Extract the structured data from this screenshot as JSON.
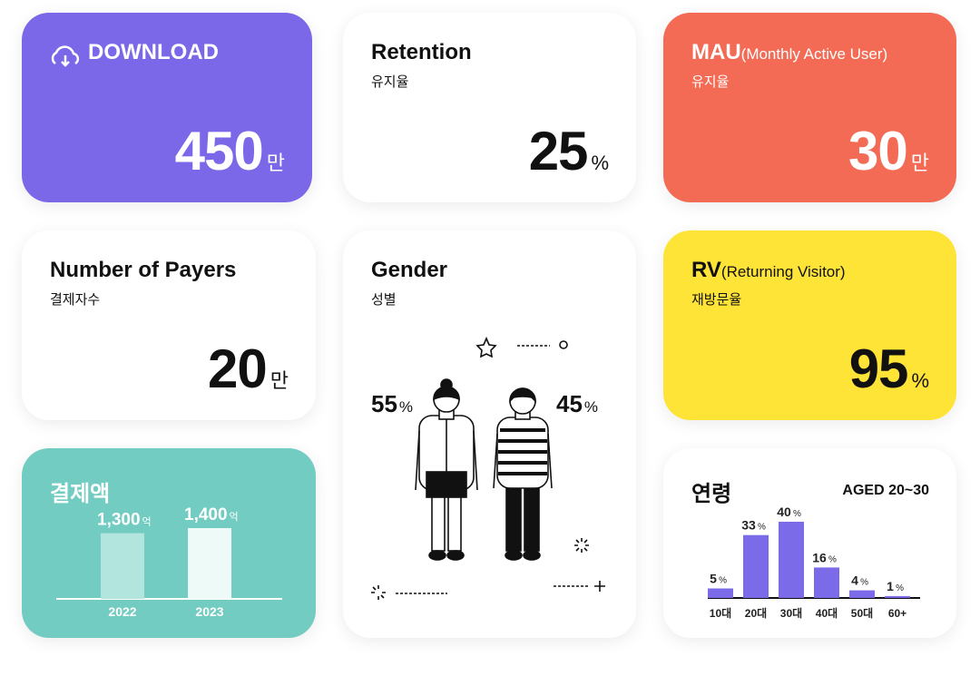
{
  "cards": {
    "download": {
      "title": "DOWNLOAD",
      "value": 450,
      "unit": "만"
    },
    "retention": {
      "title": "Retention",
      "subtitle": "유지율",
      "value": 25,
      "unit": "%"
    },
    "mau": {
      "title": "MAU",
      "title_note": "(Monthly Active User)",
      "subtitle": "유지율",
      "value": 30,
      "unit": "만"
    },
    "payers": {
      "title": "Number of Payers",
      "subtitle": "결제자수",
      "value": 20,
      "unit": "만"
    },
    "gender": {
      "title": "Gender",
      "subtitle": "성별",
      "female": 55,
      "male": 45,
      "unit": "%"
    },
    "rv": {
      "title": "RV",
      "title_note": "(Returning Visitor)",
      "subtitle": "재방문율",
      "value": 95,
      "unit": "%"
    },
    "payment": {
      "title": "결제액",
      "type": "bar",
      "categories": [
        "2022",
        "2023"
      ],
      "values": [
        1300,
        1400
      ],
      "value_labels": [
        "1,300",
        "1,400"
      ],
      "unit": "억"
    },
    "age": {
      "title": "연령",
      "subtitle": "AGED 20~30",
      "type": "bar",
      "categories": [
        "10대",
        "20대",
        "30대",
        "40대",
        "50대",
        "60+"
      ],
      "values": [
        5,
        33,
        40,
        16,
        4,
        1
      ],
      "unit": "%",
      "color": "#7b6be8"
    }
  }
}
